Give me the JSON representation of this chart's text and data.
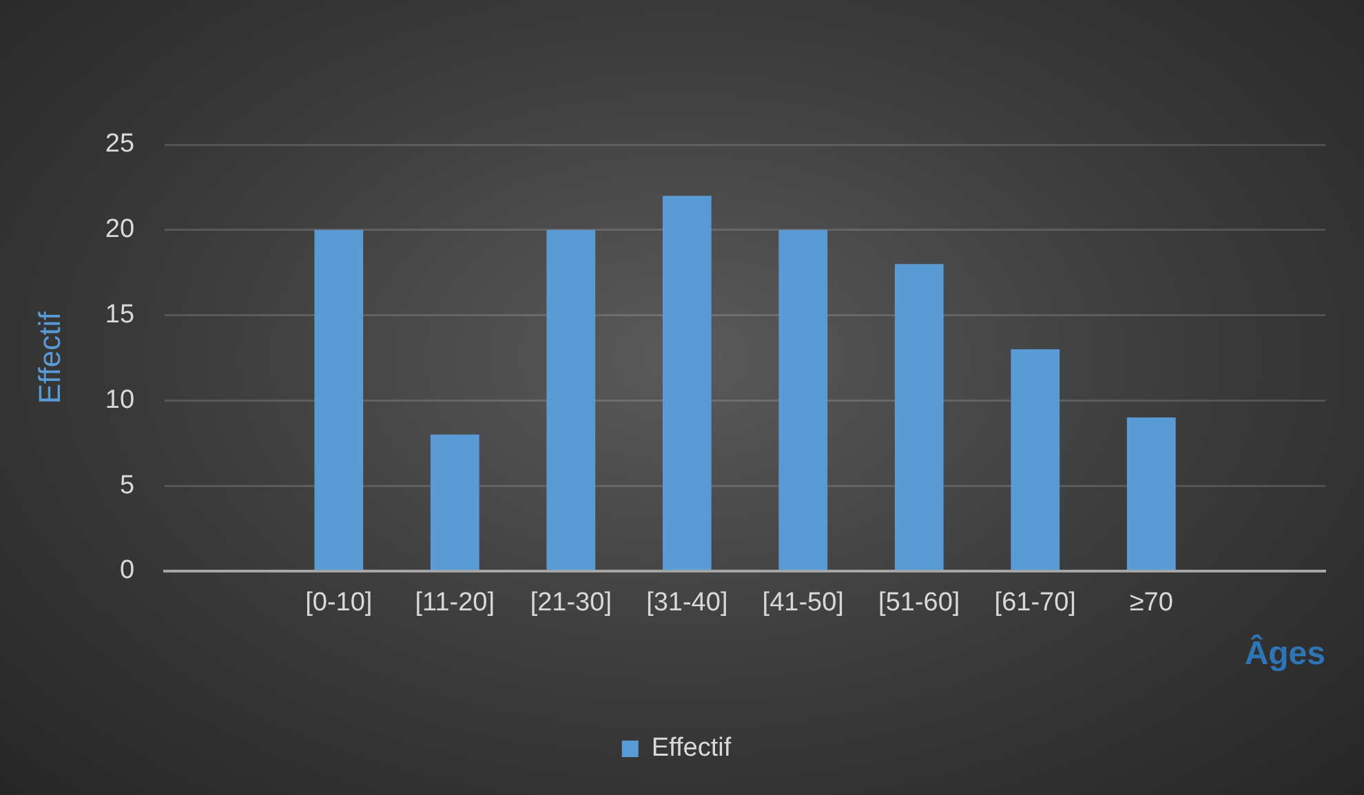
{
  "chart_data": {
    "type": "bar",
    "xlabel": "Âges",
    "ylabel": "Effectif",
    "categories": [
      null,
      "[0-10]",
      "[11-20]",
      "[21-30]",
      "[31-40]",
      "[41-50]",
      "[51-60]",
      "[61-70]",
      "≥70",
      null
    ],
    "series": [
      {
        "name": "Effectif",
        "color": "#5b9bd5",
        "values": [
          null,
          20,
          8,
          20,
          22,
          20,
          18,
          13,
          9,
          null
        ]
      }
    ],
    "ylim": [
      0,
      25
    ],
    "yticks": [
      0,
      5,
      10,
      15,
      20,
      25
    ],
    "grid": "y",
    "legend": "bottom"
  }
}
